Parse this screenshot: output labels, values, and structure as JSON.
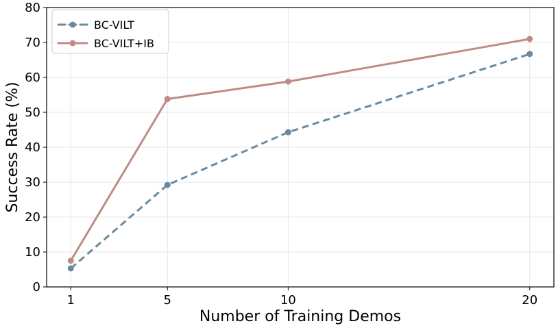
{
  "chart_data": {
    "type": "line",
    "xlabel": "Number of Training Demos",
    "ylabel": "Success Rate (%)",
    "x": [
      1,
      5,
      10,
      20
    ],
    "x_ticks": [
      "1",
      "5",
      "10",
      "20"
    ],
    "y_ticks": [
      "0",
      "10",
      "20",
      "30",
      "40",
      "50",
      "60",
      "70",
      "80"
    ],
    "xlim": [
      0,
      21
    ],
    "ylim": [
      0,
      80
    ],
    "grid": true,
    "legend_position": "top-left",
    "series": [
      {
        "name": "BC-VILT",
        "values": [
          5.3,
          29.2,
          44.3,
          66.7
        ],
        "color": "#6a8aa0",
        "line_style": "dashed",
        "marker": "circle"
      },
      {
        "name": "BC-VILT+IB",
        "values": [
          7.5,
          53.8,
          58.8,
          71.0
        ],
        "color": "#c08a86",
        "line_style": "solid",
        "marker": "circle"
      }
    ]
  }
}
